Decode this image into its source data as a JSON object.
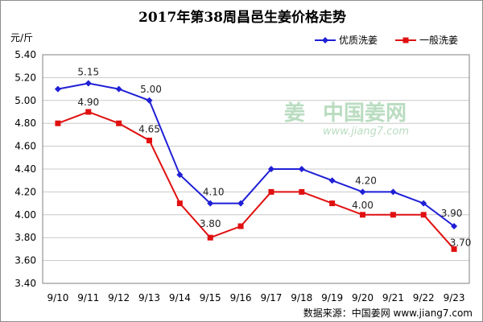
{
  "watermark": {
    "logo": "姜",
    "name": "中国姜网",
    "url": "www.jiang7.com"
  },
  "source": "数据来源：中国姜网 www.jiang7.com",
  "colors": {
    "premium": "#1f1fd6",
    "regular": "#e01010",
    "grid": "#c8c8c8"
  },
  "chart_data": {
    "type": "line",
    "title": "2017年第38周昌邑生姜价格走势",
    "ylabel": "元/斤",
    "xlabel": "",
    "categories": [
      "9/10",
      "9/11",
      "9/12",
      "9/13",
      "9/14",
      "9/15",
      "9/16",
      "9/17",
      "9/18",
      "9/19",
      "9/20",
      "9/21",
      "9/22",
      "9/23"
    ],
    "ylim": [
      3.4,
      5.4
    ],
    "yticks": [
      "3.40",
      "3.60",
      "3.80",
      "4.00",
      "4.20",
      "4.40",
      "4.60",
      "4.80",
      "5.00",
      "5.20",
      "5.40"
    ],
    "grid": true,
    "legend_position": "top-right",
    "series": [
      {
        "name": "优质洗姜",
        "color": "#1f1fd6",
        "marker": "diamond",
        "values": [
          5.1,
          5.15,
          5.1,
          5.0,
          4.35,
          4.1,
          4.1,
          4.4,
          4.4,
          4.3,
          4.2,
          4.2,
          4.1,
          3.9
        ]
      },
      {
        "name": "一般洗姜",
        "color": "#e01010",
        "marker": "square",
        "values": [
          4.8,
          4.9,
          4.8,
          4.65,
          4.1,
          3.8,
          3.9,
          4.2,
          4.2,
          4.1,
          4.0,
          4.0,
          4.0,
          3.7
        ]
      }
    ],
    "data_labels": [
      {
        "series": 0,
        "index": 1,
        "text": "5.15"
      },
      {
        "series": 0,
        "index": 3,
        "text": "5.00"
      },
      {
        "series": 0,
        "index": 5,
        "text": "4.10"
      },
      {
        "series": 0,
        "index": 10,
        "text": "4.20"
      },
      {
        "series": 0,
        "index": 13,
        "text": "3.90"
      },
      {
        "series": 1,
        "index": 1,
        "text": "4.90"
      },
      {
        "series": 1,
        "index": 3,
        "text": "4.65"
      },
      {
        "series": 1,
        "index": 5,
        "text": "3.80"
      },
      {
        "series": 1,
        "index": 10,
        "text": "4.00"
      },
      {
        "series": 1,
        "index": 13,
        "text": "3.70"
      }
    ]
  }
}
